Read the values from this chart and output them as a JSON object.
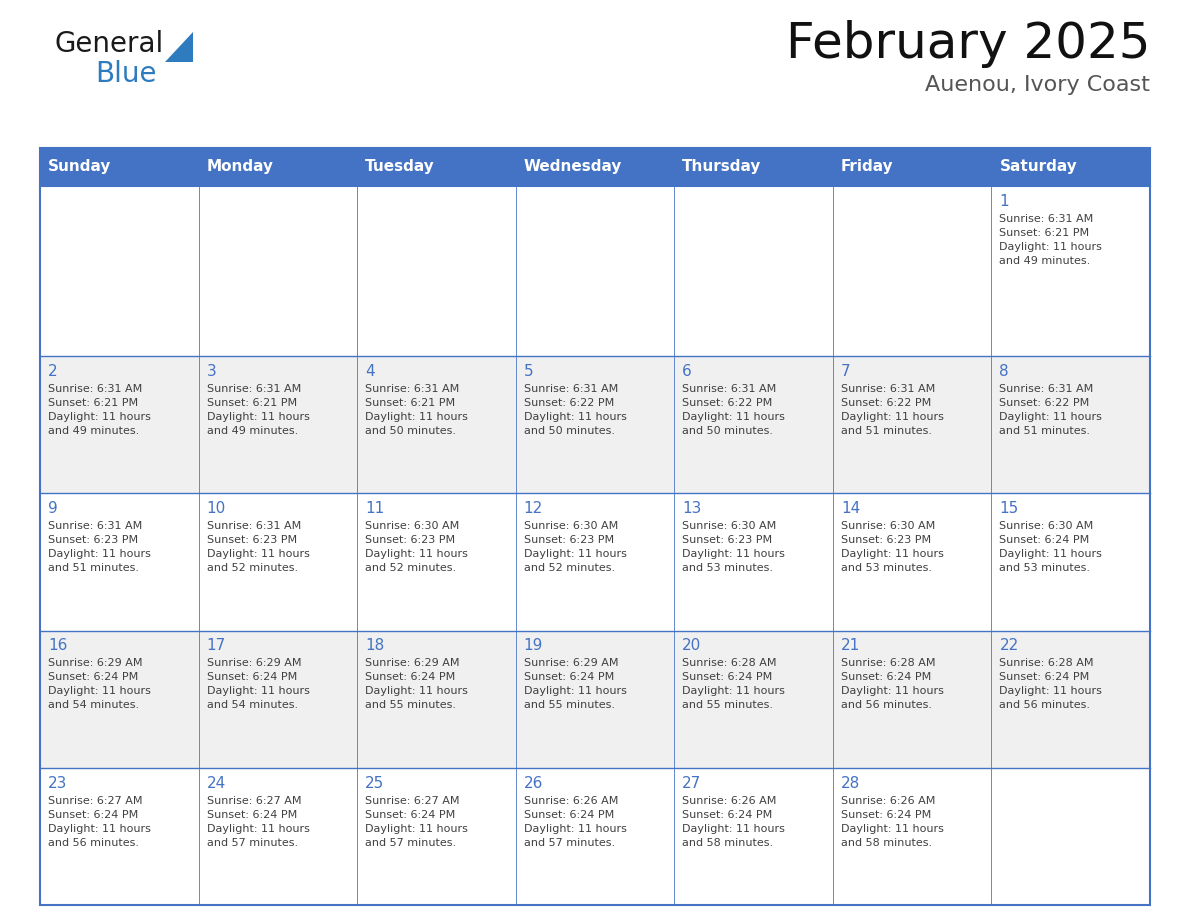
{
  "title": "February 2025",
  "subtitle": "Auenou, Ivory Coast",
  "days_of_week": [
    "Sunday",
    "Monday",
    "Tuesday",
    "Wednesday",
    "Thursday",
    "Friday",
    "Saturday"
  ],
  "header_bg": "#4472C4",
  "header_text": "#FFFFFF",
  "cell_border": "#4472C4",
  "day_number_color": "#4472C4",
  "cell_text_color": "#404040",
  "odd_row_bg": "#FFFFFF",
  "even_row_bg": "#F0F0F0",
  "calendar_data": [
    [
      {
        "day": null,
        "sunrise": null,
        "sunset": null,
        "daylight": null
      },
      {
        "day": null,
        "sunrise": null,
        "sunset": null,
        "daylight": null
      },
      {
        "day": null,
        "sunrise": null,
        "sunset": null,
        "daylight": null
      },
      {
        "day": null,
        "sunrise": null,
        "sunset": null,
        "daylight": null
      },
      {
        "day": null,
        "sunrise": null,
        "sunset": null,
        "daylight": null
      },
      {
        "day": null,
        "sunrise": null,
        "sunset": null,
        "daylight": null
      },
      {
        "day": 1,
        "sunrise": "6:31 AM",
        "sunset": "6:21 PM",
        "daylight": "11 hours and 49 minutes."
      }
    ],
    [
      {
        "day": 2,
        "sunrise": "6:31 AM",
        "sunset": "6:21 PM",
        "daylight": "11 hours and 49 minutes."
      },
      {
        "day": 3,
        "sunrise": "6:31 AM",
        "sunset": "6:21 PM",
        "daylight": "11 hours and 49 minutes."
      },
      {
        "day": 4,
        "sunrise": "6:31 AM",
        "sunset": "6:21 PM",
        "daylight": "11 hours and 50 minutes."
      },
      {
        "day": 5,
        "sunrise": "6:31 AM",
        "sunset": "6:22 PM",
        "daylight": "11 hours and 50 minutes."
      },
      {
        "day": 6,
        "sunrise": "6:31 AM",
        "sunset": "6:22 PM",
        "daylight": "11 hours and 50 minutes."
      },
      {
        "day": 7,
        "sunrise": "6:31 AM",
        "sunset": "6:22 PM",
        "daylight": "11 hours and 51 minutes."
      },
      {
        "day": 8,
        "sunrise": "6:31 AM",
        "sunset": "6:22 PM",
        "daylight": "11 hours and 51 minutes."
      }
    ],
    [
      {
        "day": 9,
        "sunrise": "6:31 AM",
        "sunset": "6:23 PM",
        "daylight": "11 hours and 51 minutes."
      },
      {
        "day": 10,
        "sunrise": "6:31 AM",
        "sunset": "6:23 PM",
        "daylight": "11 hours and 52 minutes."
      },
      {
        "day": 11,
        "sunrise": "6:30 AM",
        "sunset": "6:23 PM",
        "daylight": "11 hours and 52 minutes."
      },
      {
        "day": 12,
        "sunrise": "6:30 AM",
        "sunset": "6:23 PM",
        "daylight": "11 hours and 52 minutes."
      },
      {
        "day": 13,
        "sunrise": "6:30 AM",
        "sunset": "6:23 PM",
        "daylight": "11 hours and 53 minutes."
      },
      {
        "day": 14,
        "sunrise": "6:30 AM",
        "sunset": "6:23 PM",
        "daylight": "11 hours and 53 minutes."
      },
      {
        "day": 15,
        "sunrise": "6:30 AM",
        "sunset": "6:24 PM",
        "daylight": "11 hours and 53 minutes."
      }
    ],
    [
      {
        "day": 16,
        "sunrise": "6:29 AM",
        "sunset": "6:24 PM",
        "daylight": "11 hours and 54 minutes."
      },
      {
        "day": 17,
        "sunrise": "6:29 AM",
        "sunset": "6:24 PM",
        "daylight": "11 hours and 54 minutes."
      },
      {
        "day": 18,
        "sunrise": "6:29 AM",
        "sunset": "6:24 PM",
        "daylight": "11 hours and 55 minutes."
      },
      {
        "day": 19,
        "sunrise": "6:29 AM",
        "sunset": "6:24 PM",
        "daylight": "11 hours and 55 minutes."
      },
      {
        "day": 20,
        "sunrise": "6:28 AM",
        "sunset": "6:24 PM",
        "daylight": "11 hours and 55 minutes."
      },
      {
        "day": 21,
        "sunrise": "6:28 AM",
        "sunset": "6:24 PM",
        "daylight": "11 hours and 56 minutes."
      },
      {
        "day": 22,
        "sunrise": "6:28 AM",
        "sunset": "6:24 PM",
        "daylight": "11 hours and 56 minutes."
      }
    ],
    [
      {
        "day": 23,
        "sunrise": "6:27 AM",
        "sunset": "6:24 PM",
        "daylight": "11 hours and 56 minutes."
      },
      {
        "day": 24,
        "sunrise": "6:27 AM",
        "sunset": "6:24 PM",
        "daylight": "11 hours and 57 minutes."
      },
      {
        "day": 25,
        "sunrise": "6:27 AM",
        "sunset": "6:24 PM",
        "daylight": "11 hours and 57 minutes."
      },
      {
        "day": 26,
        "sunrise": "6:26 AM",
        "sunset": "6:24 PM",
        "daylight": "11 hours and 57 minutes."
      },
      {
        "day": 27,
        "sunrise": "6:26 AM",
        "sunset": "6:24 PM",
        "daylight": "11 hours and 58 minutes."
      },
      {
        "day": 28,
        "sunrise": "6:26 AM",
        "sunset": "6:24 PM",
        "daylight": "11 hours and 58 minutes."
      },
      {
        "day": null,
        "sunrise": null,
        "sunset": null,
        "daylight": null
      }
    ]
  ],
  "logo_text_general": "General",
  "logo_text_blue": "Blue",
  "logo_color_general": "#1a1a1a",
  "logo_color_blue": "#2E7BBF",
  "logo_triangle_color": "#2E7BBF",
  "title_fontsize": 36,
  "subtitle_fontsize": 16,
  "header_fontsize": 11,
  "day_num_fontsize": 11,
  "cell_text_fontsize": 8
}
